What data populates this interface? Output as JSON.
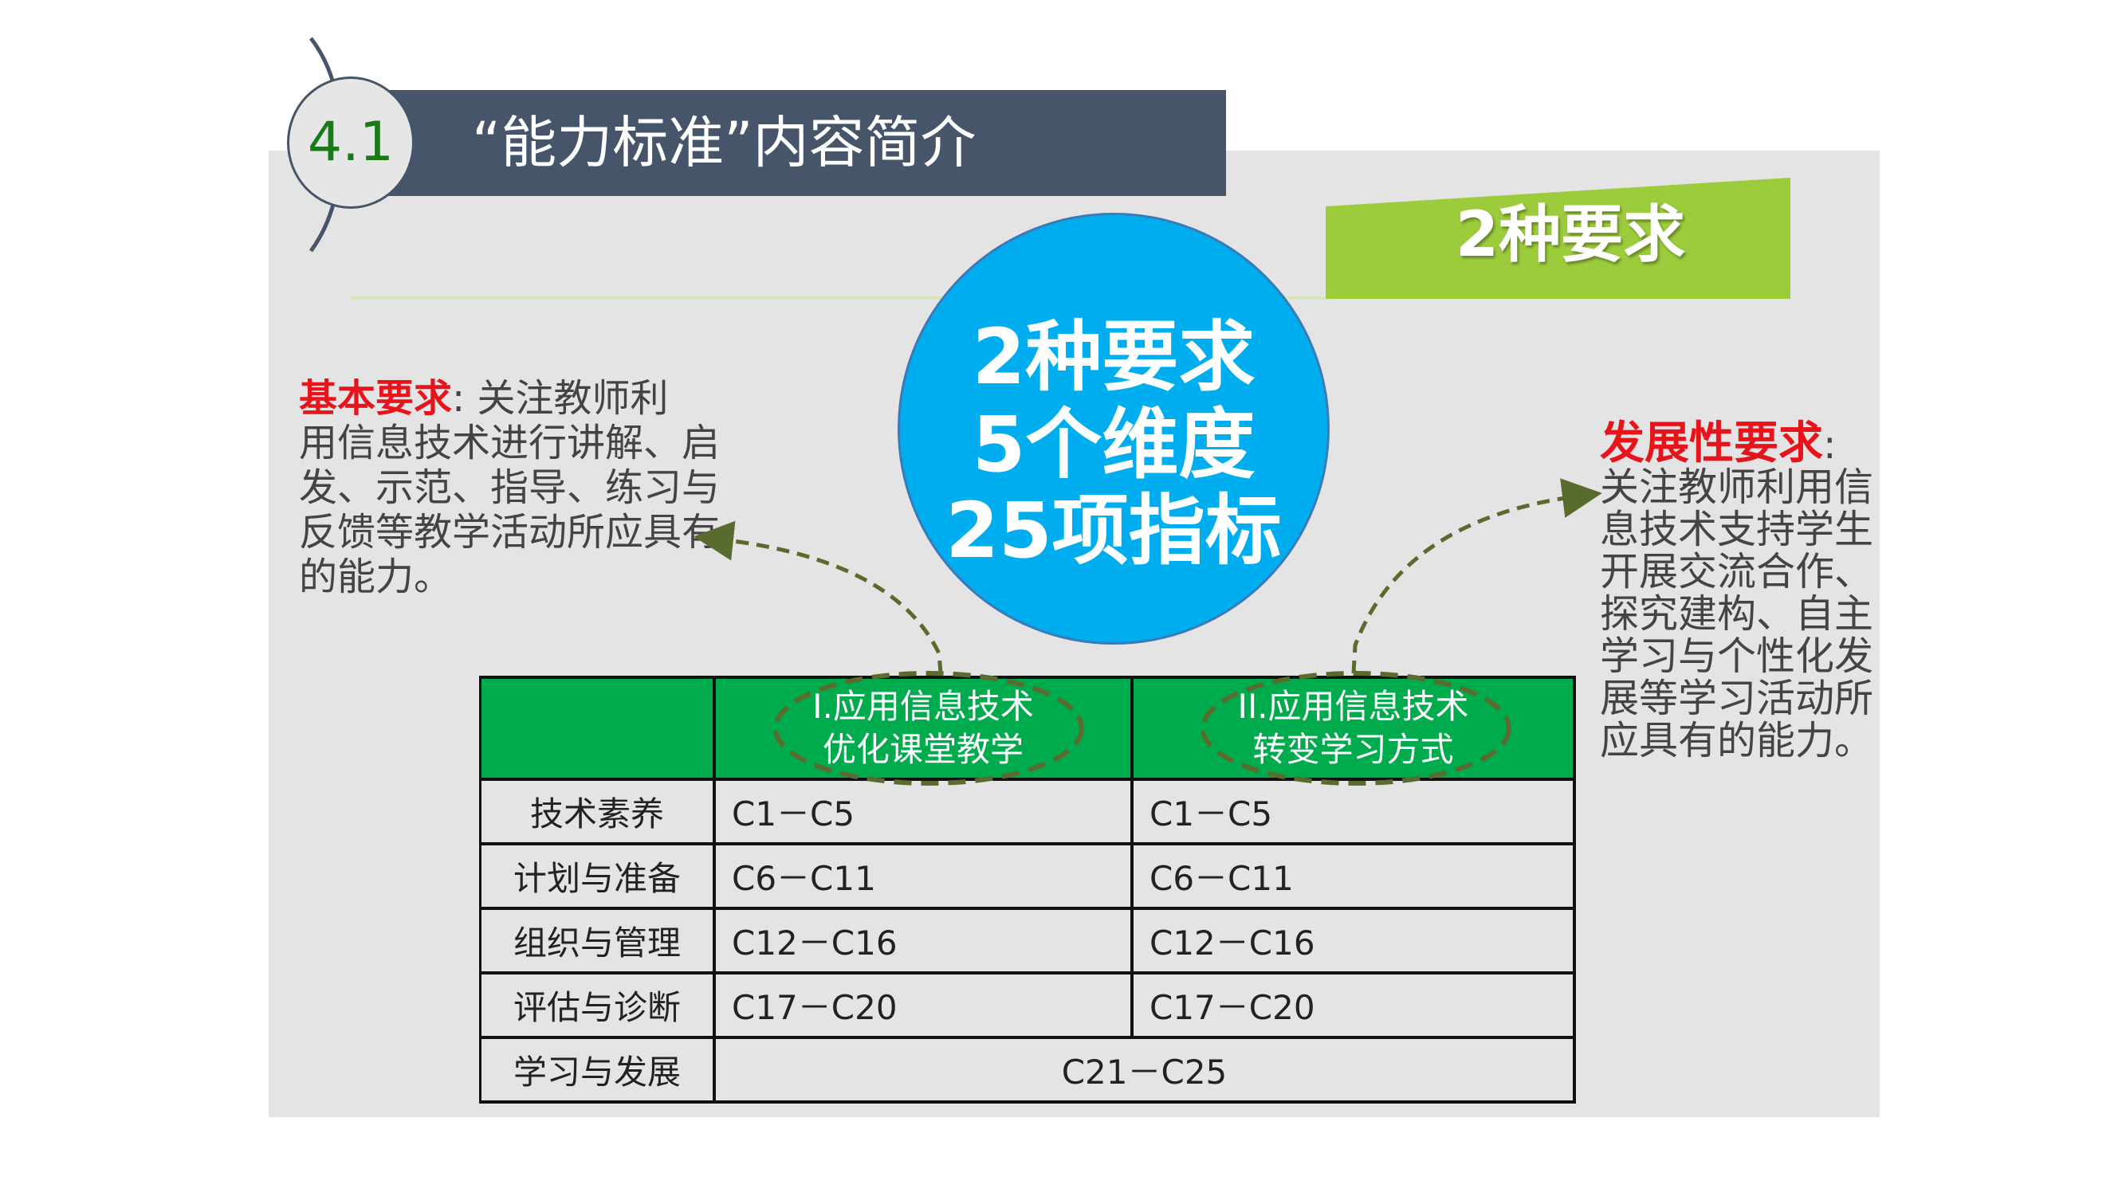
{
  "header": {
    "section_number": "4.1",
    "title": "“能力标准”内容简介"
  },
  "banner": {
    "label": "2种要求"
  },
  "center_circle": {
    "lines": [
      "2种要求",
      "5个维度",
      "25项指标"
    ]
  },
  "left_note": {
    "heading": "基本要求",
    "colon": ":",
    "lines": [
      "关注教师利",
      "用信息技术进行讲解、启",
      "发、示范、指导、练习与",
      "反馈等教学活动所应具有",
      "的能力。"
    ]
  },
  "right_note": {
    "heading": "发展性要求",
    "colon": ":",
    "lines": [
      "关注教师利用信",
      "息技术支持学生",
      "开展交流合作、",
      "探究建构、自主",
      "学习与个性化发",
      "展等学习活动所",
      "应具有的能力。"
    ]
  },
  "table": {
    "columns": [
      {
        "line1": "I.应用信息技术",
        "line2": "优化课堂教学"
      },
      {
        "line1": "II.应用信息技术",
        "line2": "转变学习方式"
      }
    ],
    "rows": [
      {
        "label": "技术素养",
        "c1": "C1－C5",
        "c2": "C1－C5"
      },
      {
        "label": "计划与准备",
        "c1": "C6－C11",
        "c2": "C6－C11"
      },
      {
        "label": "组织与管理",
        "c1": "C12－C16",
        "c2": "C12－C16"
      },
      {
        "label": "评估与诊断",
        "c1": "C17－C20",
        "c2": "C17－C20"
      },
      {
        "label": "学习与发展",
        "merged": "C21－C25"
      }
    ]
  },
  "colors": {
    "title_bar": "#465569",
    "banner": "#9ccc3c",
    "circle": "#00aeef",
    "table_header": "#00ab4e",
    "heading_red": "#e8141c",
    "dash": "#5a6b2e"
  }
}
